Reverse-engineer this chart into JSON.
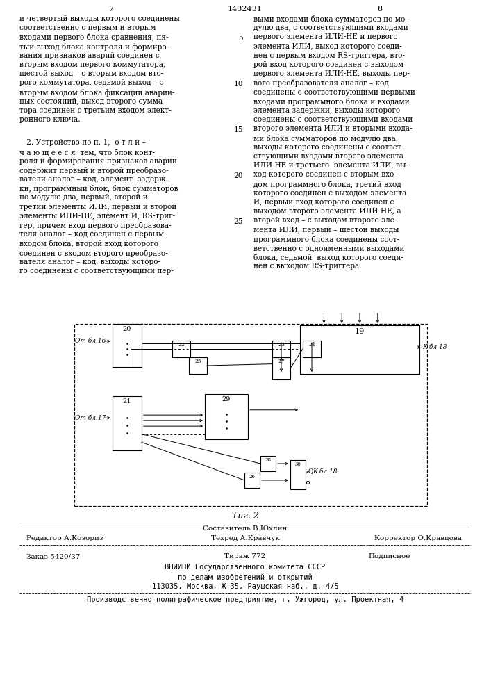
{
  "page_number_left": "7",
  "page_number_center": "1432431",
  "page_number_right": "8",
  "col1_lines": [
    "и четвертый выходы которого соединены",
    "соответственно с первым и вторым",
    "входами первого блока сравнения, пя-",
    "тый выход блока контроля и формиро-",
    "вания признаков аварий соединен с",
    "вторым входом первого коммутатора,",
    "шестой выход – с вторым входом вто-",
    "рого коммутатора, седьмой выход – с",
    "вторым входом блока фиксации аварий-",
    "ных состояний, выход второго сумма-",
    "тора соединен с третьим входом элект-",
    "ронного ключа."
  ],
  "col1_claim_lines": [
    "   2. Устройство по п. 1,  о т л и –",
    "ч а ю щ е е с я  тем, что блок конт-",
    "роля и формирования признаков аварий",
    "содержит первый и второй преобразо-",
    "ватели аналог – код, элемент  задерж-",
    "ки, программный блок, блок сумматоров",
    "по модулю два, первый, второй и",
    "третий элементы ИЛИ, первый и второй",
    "элементы ИЛИ-НЕ, элемент И, RS-триг-",
    "гер, причем вход первого преобразова-",
    "теля аналог – код соединен с первым",
    "входом блока, второй вход которого",
    "соединен с входом второго преобразо-",
    "вателя аналог – код, выходы которо-",
    "го соединены с соответствующими пер-"
  ],
  "col2_lines": [
    "выми входами блока сумматоров по мо-",
    "дулю два, с соответствующими входами",
    "первого элемента ИЛИ-НЕ и первого",
    "элемента ИЛИ, выход которого соеди-",
    "нен с первым входом RS-триггера, вто-",
    "рой вход которого соединен с выходом",
    "первого элемента ИЛИ-НЕ, выходы пер-",
    "вого преобразователя аналог – код",
    "соединены с соответствующими первыми",
    "входами программного блока и входами",
    "элемента задержки, выходы которого",
    "соединены с соответствующими входами",
    "второго элемента ИЛИ и вторыми входа-",
    "ми блока сумматоров по модулю два,",
    "выходы которого соединены с соответ-",
    "ствующими входами второго элемента",
    "ИЛИ-НЕ и третьего  элемента ИЛИ, вы-",
    "ход которого соединен с вторым вхо-",
    "дом программного блока, третий вход",
    "которого соединен с выходом элемента",
    "И, первый вход которого соединен с",
    "выходом второго элемента ИЛИ-НЕ, а",
    "второй вход – с выходом второго эле-",
    "мента ИЛИ, первый – шестой выходы",
    "программного блока соединены соот-",
    "ветственно с одноименными выходами",
    "блока, седьмой  выход которого соеди-",
    "нен с выходом RS-триггера."
  ],
  "fig_caption": "Τиг. 2",
  "footer_line1_center": "Составитель В.Юхлин",
  "footer_line2_left": "Редактор А.Козориз",
  "footer_line2_center": "Техред А.Кравчук",
  "footer_line2_right": "Корректор О.Кравцова",
  "footer_line3_left": "Заказ 5420/37",
  "footer_line3_center": "Тираж 772",
  "footer_line3_right": "Подписное",
  "footer_vniipii": "ВНИИПИ Государственного комитета СССР",
  "footer_delo": "по делам изобретений и открытий",
  "footer_addr": "113035, Москва, Ж-35, Раушская наб., д. 4/5",
  "footer_prod": "Производственно-полиграфическое предприятие, г. Ужгород, ул. Проектная, 4",
  "bg_color": "#ffffff",
  "text_color": "#000000"
}
